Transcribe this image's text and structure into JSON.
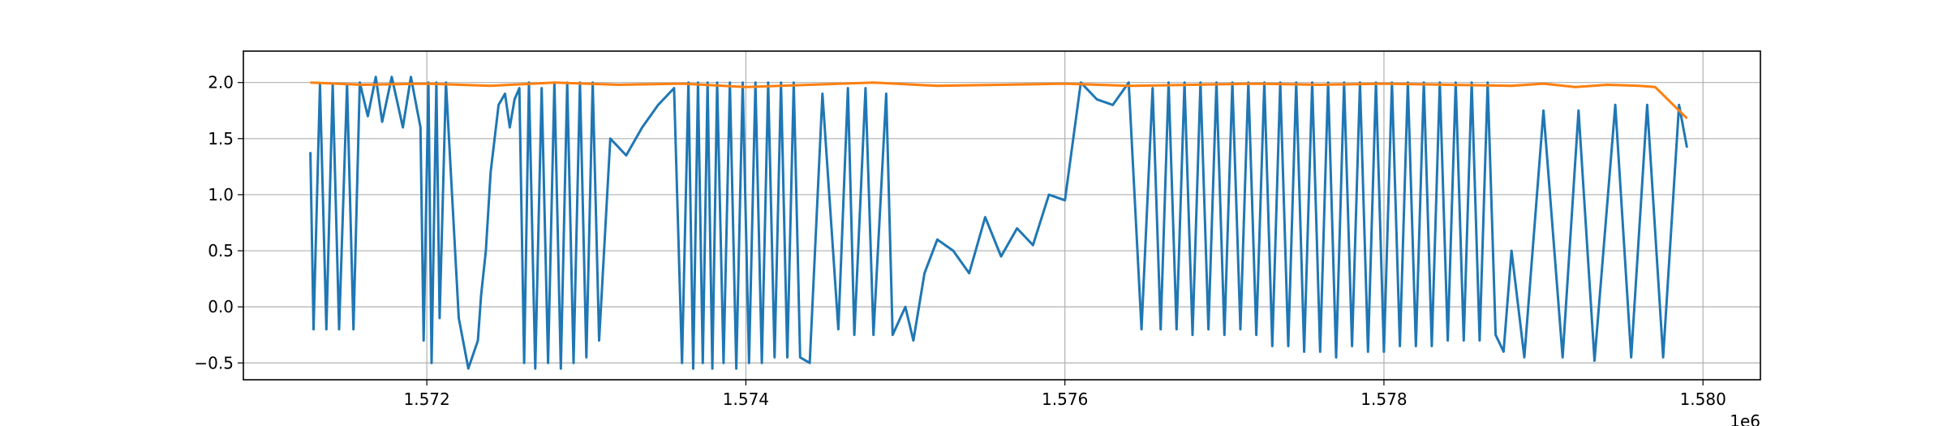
{
  "chart_data": {
    "type": "line",
    "title": "",
    "xlabel": "",
    "ylabel": "",
    "x_offset_label": "1e6",
    "xlim": [
      1.57085,
      1.58036
    ],
    "ylim": [
      -0.65,
      2.28
    ],
    "x_ticks": [
      {
        "value": 1.572,
        "label": "1.572"
      },
      {
        "value": 1.574,
        "label": "1.574"
      },
      {
        "value": 1.576,
        "label": "1.576"
      },
      {
        "value": 1.578,
        "label": "1.578"
      },
      {
        "value": 1.58,
        "label": "1.580"
      }
    ],
    "y_ticks": [
      {
        "value": -0.5,
        "label": "−0.5"
      },
      {
        "value": 0.0,
        "label": "0.0"
      },
      {
        "value": 0.5,
        "label": "0.5"
      },
      {
        "value": 1.0,
        "label": "1.0"
      },
      {
        "value": 1.5,
        "label": "1.5"
      },
      {
        "value": 2.0,
        "label": "2.0"
      }
    ],
    "grid": true,
    "legend": "none",
    "series": [
      {
        "color": "#1f77b4",
        "x": [
          1.57127,
          1.57129,
          1.57133,
          1.57137,
          1.57141,
          1.57145,
          1.5715,
          1.57154,
          1.57158,
          1.57163,
          1.57168,
          1.57172,
          1.57178,
          1.57185,
          1.5719,
          1.57196,
          1.57198,
          1.57201,
          1.57203,
          1.57206,
          1.57208,
          1.57212,
          1.5722,
          1.57226,
          1.57232,
          1.57234,
          1.57237,
          1.5724,
          1.57245,
          1.57249,
          1.57252,
          1.57255,
          1.57258,
          1.57261,
          1.57264,
          1.57268,
          1.57272,
          1.57276,
          1.5728,
          1.57284,
          1.57288,
          1.57292,
          1.57296,
          1.573,
          1.57304,
          1.57308,
          1.57315,
          1.57325,
          1.57335,
          1.57345,
          1.57355,
          1.5736,
          1.57364,
          1.57367,
          1.5737,
          1.57373,
          1.57376,
          1.57379,
          1.57382,
          1.57386,
          1.5739,
          1.57394,
          1.57398,
          1.57402,
          1.57406,
          1.5741,
          1.57414,
          1.57418,
          1.57422,
          1.57426,
          1.5743,
          1.57434,
          1.5744,
          1.57448,
          1.57458,
          1.57464,
          1.57468,
          1.57475,
          1.5748,
          1.57488,
          1.57492,
          1.575,
          1.57505,
          1.57512,
          1.5752,
          1.5753,
          1.5754,
          1.5755,
          1.5756,
          1.5757,
          1.5758,
          1.5759,
          1.576,
          1.5761,
          1.5762,
          1.5763,
          1.5764,
          1.57648,
          1.57655,
          1.5766,
          1.57665,
          1.5767,
          1.57675,
          1.5768,
          1.57685,
          1.5769,
          1.57695,
          1.577,
          1.57705,
          1.5771,
          1.57715,
          1.5772,
          1.57725,
          1.5773,
          1.57735,
          1.5774,
          1.57745,
          1.5775,
          1.57755,
          1.5776,
          1.57765,
          1.5777,
          1.57775,
          1.5778,
          1.57785,
          1.5779,
          1.57795,
          1.578,
          1.57805,
          1.5781,
          1.57815,
          1.5782,
          1.57825,
          1.5783,
          1.57835,
          1.5784,
          1.57845,
          1.5785,
          1.57855,
          1.5786,
          1.57865,
          1.5787,
          1.57875,
          1.5788,
          1.57888,
          1.579,
          1.57912,
          1.57922,
          1.57932,
          1.57945,
          1.57955,
          1.57965,
          1.57975,
          1.57985,
          1.5799
        ],
        "y": [
          1.38,
          -0.2,
          1.98,
          -0.2,
          1.98,
          -0.2,
          1.98,
          -0.2,
          2.0,
          1.7,
          2.05,
          1.65,
          2.05,
          1.6,
          2.05,
          1.6,
          -0.3,
          2.0,
          -0.5,
          2.0,
          -0.1,
          2.0,
          -0.1,
          -0.55,
          -0.3,
          0.1,
          0.5,
          1.2,
          1.8,
          1.9,
          1.6,
          1.85,
          1.95,
          -0.5,
          2.0,
          -0.55,
          1.95,
          -0.5,
          2.0,
          -0.55,
          2.0,
          -0.5,
          2.0,
          -0.45,
          2.0,
          -0.3,
          1.5,
          1.35,
          1.6,
          1.8,
          1.95,
          -0.5,
          2.0,
          -0.55,
          2.0,
          -0.5,
          2.0,
          -0.55,
          2.0,
          -0.5,
          2.0,
          -0.55,
          2.0,
          -0.5,
          2.0,
          -0.5,
          2.0,
          -0.45,
          2.0,
          -0.45,
          2.0,
          -0.45,
          -0.5,
          1.9,
          -0.2,
          1.95,
          -0.25,
          1.95,
          -0.25,
          1.9,
          -0.25,
          0.0,
          -0.3,
          0.3,
          0.6,
          0.5,
          0.3,
          0.8,
          0.45,
          0.7,
          0.55,
          1.0,
          0.95,
          2.0,
          1.85,
          1.8,
          2.0,
          -0.2,
          1.95,
          -0.2,
          2.0,
          -0.2,
          2.0,
          -0.25,
          2.0,
          -0.2,
          2.0,
          -0.25,
          2.0,
          -0.2,
          2.0,
          -0.25,
          2.0,
          -0.35,
          2.0,
          -0.35,
          2.0,
          -0.4,
          2.0,
          -0.4,
          2.0,
          -0.45,
          2.0,
          -0.35,
          2.0,
          -0.4,
          2.0,
          -0.4,
          2.0,
          -0.35,
          2.0,
          -0.35,
          2.0,
          -0.35,
          2.0,
          -0.3,
          2.0,
          -0.3,
          2.0,
          -0.3,
          2.0,
          -0.25,
          -0.4,
          0.5,
          -0.45,
          1.75,
          -0.45,
          1.75,
          -0.48,
          1.8,
          -0.45,
          1.8,
          -0.45,
          1.8,
          1.42
        ]
      },
      {
        "color": "#ff7f0e",
        "x": [
          1.57127,
          1.5716,
          1.572,
          1.5724,
          1.5728,
          1.5732,
          1.5736,
          1.574,
          1.5744,
          1.5748,
          1.5752,
          1.5756,
          1.576,
          1.5764,
          1.5768,
          1.5772,
          1.5776,
          1.578,
          1.5784,
          1.5788,
          1.579,
          1.5792,
          1.5794,
          1.5796,
          1.5797,
          1.5798,
          1.5799
        ],
        "y": [
          2.0,
          1.98,
          1.99,
          1.97,
          2.0,
          1.98,
          1.99,
          1.96,
          1.98,
          2.0,
          1.97,
          1.98,
          1.99,
          1.97,
          1.98,
          1.99,
          1.98,
          1.99,
          1.98,
          1.97,
          1.99,
          1.96,
          1.98,
          1.97,
          1.96,
          1.82,
          1.68
        ]
      }
    ]
  }
}
